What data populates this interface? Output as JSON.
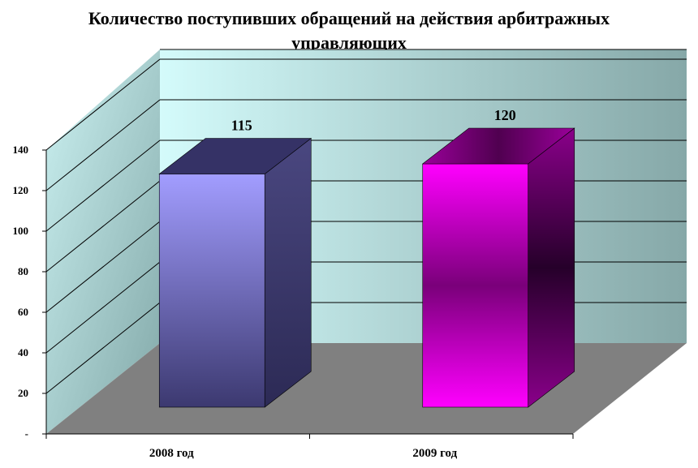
{
  "chart_data": {
    "type": "bar",
    "title": "Количество поступивших обращений на действия арбитражных управляющих",
    "title_lines": [
      "Количество поступивших обращений на действия арбитражных",
      "управляющих"
    ],
    "categories": [
      "2008 год",
      "2009 год"
    ],
    "values": [
      115,
      120
    ],
    "data_labels": [
      "115",
      "120"
    ],
    "ylim": [
      0,
      140
    ],
    "y_ticks": [
      0,
      20,
      40,
      60,
      80,
      100,
      120,
      140
    ],
    "y_tick_labels": [
      "-",
      "20",
      "40",
      "60",
      "80",
      "100",
      "120",
      "140"
    ],
    "xlabel": "",
    "ylabel": "",
    "grid": true,
    "legend": "none",
    "style_3d": true,
    "colors": {
      "back_wall_light": "#d4fbfb",
      "back_wall_dark": "#86a8a8",
      "side_wall_light": "#cbf1f1",
      "side_wall_dark": "#82a8a8",
      "floor": "#808080",
      "bar1_front_light": "#a29dff",
      "bar1_front_dark": "#3c3970",
      "bar1_side": "#2c2a55",
      "bar1_top": "#353266",
      "bar2_front_light": "#ff00ff",
      "bar2_front_dark": "#7a007a",
      "bar2_side": "#26002a",
      "bar2_top": "#500050"
    }
  }
}
